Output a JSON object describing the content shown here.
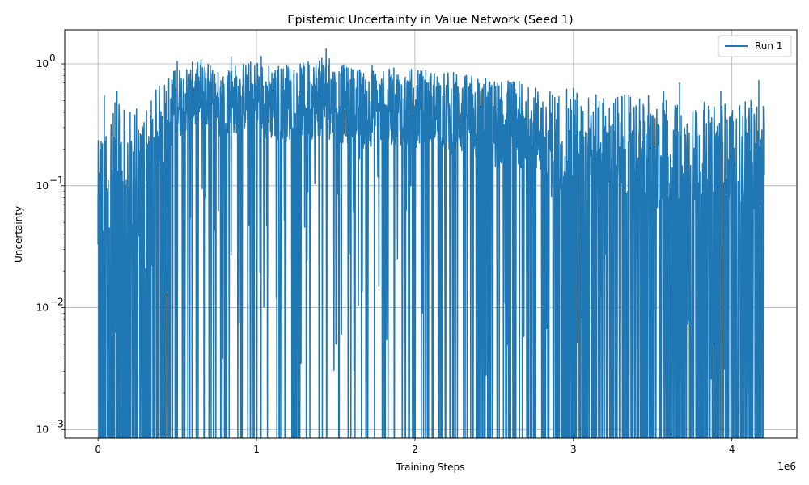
{
  "chart_data": {
    "type": "line",
    "title": "Epistemic Uncertainty in Value Network (Seed 1)",
    "xlabel": "Training Steps",
    "ylabel": "Uncertainty",
    "x_offset_label": "1e6",
    "x_ticks": [
      0,
      1,
      2,
      3,
      4
    ],
    "x_tick_labels": [
      "0",
      "1",
      "2",
      "3",
      "4"
    ],
    "y_scale": "log",
    "y_ticks": [
      0.001,
      0.01,
      0.1,
      1
    ],
    "y_tick_labels": [
      "10",
      "10",
      "10",
      "10"
    ],
    "y_tick_exponents": [
      "−3",
      "−2",
      "−1",
      "0"
    ],
    "xlim": [
      -0.21,
      4.41
    ],
    "ylim": [
      0.00085,
      1.9
    ],
    "grid": true,
    "legend": {
      "placement": "top-right",
      "entries": [
        "Run 1"
      ]
    },
    "series": [
      {
        "name": "Run 1",
        "color": "#1f77b4",
        "x_range": [
          0,
          4.2
        ],
        "envelope_x": [
          0,
          0.1,
          0.2,
          0.3,
          0.4,
          0.5,
          0.6,
          0.7,
          0.8,
          0.9,
          1.0,
          1.1,
          1.2,
          1.3,
          1.4,
          1.5,
          1.6,
          1.7,
          1.8,
          1.9,
          2.0,
          2.1,
          2.2,
          2.3,
          2.4,
          2.5,
          2.6,
          2.7,
          2.8,
          2.9,
          3.0,
          3.1,
          3.2,
          3.3,
          3.4,
          3.5,
          3.6,
          3.7,
          3.8,
          3.9,
          4.0,
          4.1,
          4.2
        ],
        "typical_peak": [
          0.2,
          0.4,
          0.35,
          0.4,
          0.55,
          0.75,
          0.8,
          0.8,
          0.75,
          0.8,
          0.85,
          0.8,
          0.8,
          0.8,
          0.9,
          0.8,
          0.75,
          0.7,
          0.7,
          0.75,
          0.7,
          0.7,
          0.7,
          0.65,
          0.65,
          0.6,
          0.6,
          0.55,
          0.5,
          0.5,
          0.5,
          0.45,
          0.45,
          0.45,
          0.45,
          0.45,
          0.45,
          0.4,
          0.4,
          0.4,
          0.4,
          0.4,
          0.4
        ],
        "typical_center": [
          0.05,
          0.15,
          0.12,
          0.15,
          0.3,
          0.45,
          0.5,
          0.5,
          0.45,
          0.5,
          0.5,
          0.45,
          0.45,
          0.45,
          0.5,
          0.45,
          0.42,
          0.4,
          0.4,
          0.42,
          0.4,
          0.4,
          0.38,
          0.35,
          0.33,
          0.3,
          0.3,
          0.27,
          0.25,
          0.22,
          0.22,
          0.2,
          0.2,
          0.2,
          0.2,
          0.18,
          0.18,
          0.17,
          0.17,
          0.16,
          0.16,
          0.16,
          0.16
        ],
        "dropout_rate": [
          0.5,
          0.45,
          0.45,
          0.45,
          0.3,
          0.15,
          0.1,
          0.1,
          0.12,
          0.1,
          0.08,
          0.08,
          0.1,
          0.1,
          0.08,
          0.1,
          0.1,
          0.1,
          0.1,
          0.1,
          0.12,
          0.12,
          0.15,
          0.15,
          0.2,
          0.22,
          0.22,
          0.25,
          0.28,
          0.3,
          0.3,
          0.32,
          0.32,
          0.33,
          0.33,
          0.35,
          0.35,
          0.35,
          0.35,
          0.35,
          0.35,
          0.35,
          0.35
        ],
        "notable_points": [
          {
            "x": 0.0,
            "y": 0.085
          },
          {
            "x": 0.02,
            "y": 0.23
          },
          {
            "x": 0.04,
            "y": 0.55
          },
          {
            "x": 0.12,
            "y": 0.6
          },
          {
            "x": 0.5,
            "y": 1.05
          },
          {
            "x": 0.65,
            "y": 1.08
          },
          {
            "x": 0.7,
            "y": 0.016
          },
          {
            "x": 0.84,
            "y": 1.15
          },
          {
            "x": 1.03,
            "y": 1.15
          },
          {
            "x": 1.2,
            "y": 0.9
          },
          {
            "x": 1.44,
            "y": 1.33
          },
          {
            "x": 1.46,
            "y": 1.1
          },
          {
            "x": 1.73,
            "y": 0.97
          },
          {
            "x": 1.87,
            "y": 0.011
          },
          {
            "x": 2.02,
            "y": 0.88
          },
          {
            "x": 2.45,
            "y": 0.0028
          },
          {
            "x": 3.0,
            "y": 0.63
          },
          {
            "x": 3.57,
            "y": 0.6
          },
          {
            "x": 3.67,
            "y": 0.7
          },
          {
            "x": 3.87,
            "y": 0.0026
          },
          {
            "x": 3.93,
            "y": 0.6
          },
          {
            "x": 4.0,
            "y": 0.004
          },
          {
            "x": 4.12,
            "y": 0.5
          },
          {
            "x": 4.17,
            "y": 0.73
          },
          {
            "x": 4.2,
            "y": 0.3
          }
        ],
        "note_hidden": ""
      }
    ]
  }
}
